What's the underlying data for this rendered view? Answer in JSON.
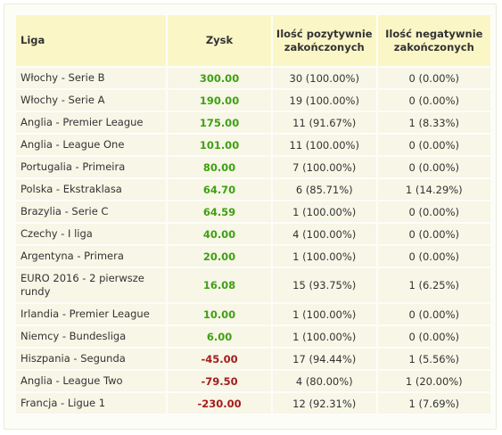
{
  "table": {
    "headers": {
      "liga": "Liga",
      "zysk": "Zysk",
      "positive": "Ilość pozytywnie zakończonych",
      "negative": "Ilość negatywnie zakończonych"
    },
    "rows": [
      {
        "liga": "Włochy - Serie B",
        "zysk": "300.00",
        "positive": "30 (100.00%)",
        "negative": "0 (0.00%)",
        "sign": "pos"
      },
      {
        "liga": "Włochy - Serie A",
        "zysk": "190.00",
        "positive": "19 (100.00%)",
        "negative": "0 (0.00%)",
        "sign": "pos"
      },
      {
        "liga": "Anglia - Premier League",
        "zysk": "175.00",
        "positive": "11 (91.67%)",
        "negative": "1 (8.33%)",
        "sign": "pos"
      },
      {
        "liga": "Anglia - League One",
        "zysk": "101.00",
        "positive": "11 (100.00%)",
        "negative": "0 (0.00%)",
        "sign": "pos"
      },
      {
        "liga": "Portugalia - Primeira",
        "zysk": "80.00",
        "positive": "7 (100.00%)",
        "negative": "0 (0.00%)",
        "sign": "pos"
      },
      {
        "liga": "Polska - Ekstraklasa",
        "zysk": "64.70",
        "positive": "6 (85.71%)",
        "negative": "1 (14.29%)",
        "sign": "pos"
      },
      {
        "liga": "Brazylia - Serie C",
        "zysk": "64.59",
        "positive": "1 (100.00%)",
        "negative": "0 (0.00%)",
        "sign": "pos"
      },
      {
        "liga": "Czechy - I liga",
        "zysk": "40.00",
        "positive": "4 (100.00%)",
        "negative": "0 (0.00%)",
        "sign": "pos"
      },
      {
        "liga": "Argentyna - Primera",
        "zysk": "20.00",
        "positive": "1 (100.00%)",
        "negative": "0 (0.00%)",
        "sign": "pos"
      },
      {
        "liga": "EURO 2016 - 2 pierwsze rundy",
        "zysk": "16.08",
        "positive": "15 (93.75%)",
        "negative": "1 (6.25%)",
        "sign": "pos"
      },
      {
        "liga": "Irlandia - Premier League",
        "zysk": "10.00",
        "positive": "1 (100.00%)",
        "negative": "0 (0.00%)",
        "sign": "pos"
      },
      {
        "liga": "Niemcy - Bundesliga",
        "zysk": "6.00",
        "positive": "1 (100.00%)",
        "negative": "0 (0.00%)",
        "sign": "pos"
      },
      {
        "liga": "Hiszpania - Segunda",
        "zysk": "-45.00",
        "positive": "17 (94.44%)",
        "negative": "1 (5.56%)",
        "sign": "neg"
      },
      {
        "liga": "Anglia - League Two",
        "zysk": "-79.50",
        "positive": "4 (80.00%)",
        "negative": "1 (20.00%)",
        "sign": "neg"
      },
      {
        "liga": "Francja - Ligue 1",
        "zysk": "-230.00",
        "positive": "12 (92.31%)",
        "negative": "1 (7.69%)",
        "sign": "neg"
      }
    ]
  },
  "colors": {
    "header_bg": "#fbf6c6",
    "row_bg": "#f7f6e7",
    "profit_positive": "#3fa013",
    "profit_negative": "#a31c1c"
  }
}
